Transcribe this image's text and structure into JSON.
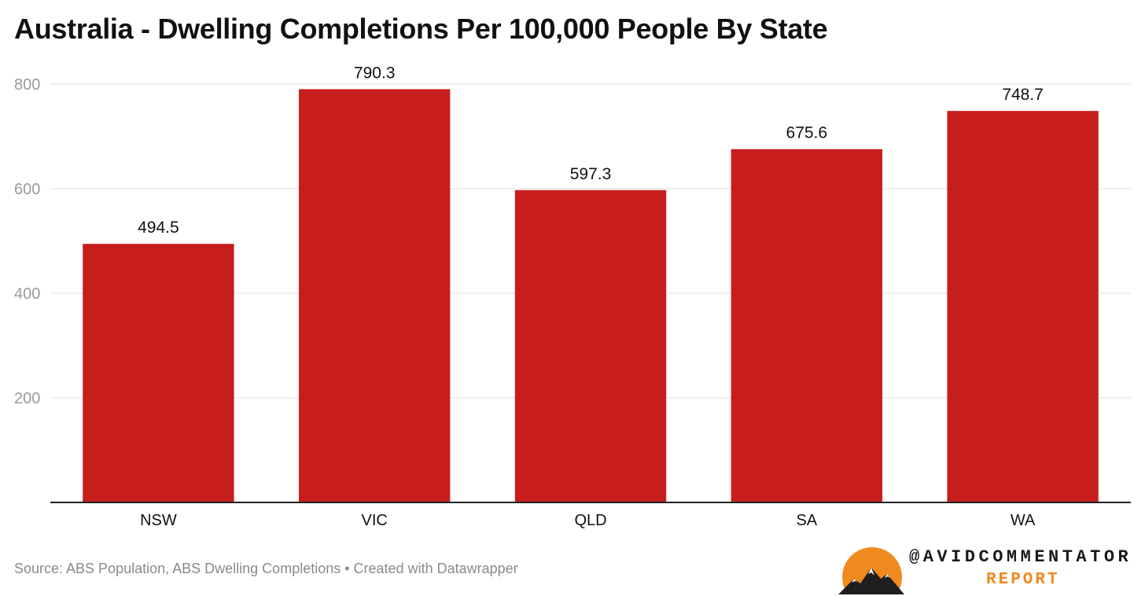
{
  "chart_data": {
    "type": "bar",
    "title": "Australia - Dwelling Completions Per 100,000 People By State",
    "categories": [
      "NSW",
      "VIC",
      "QLD",
      "SA",
      "WA"
    ],
    "values": [
      494.5,
      790.3,
      597.3,
      675.6,
      748.7
    ],
    "value_labels": [
      "494.5",
      "790.3",
      "597.3",
      "675.6",
      "748.7"
    ],
    "ylim": [
      0,
      800
    ],
    "yticks": [
      200,
      400,
      600,
      800
    ],
    "ytick_labels": [
      "200",
      "400",
      "600",
      "800"
    ],
    "xlabel": "",
    "ylabel": "",
    "grid": true,
    "legend": "none",
    "bar_color": "#c81d1d"
  },
  "footer": {
    "source": "Source: ABS Population, ABS Dwelling Completions • Created with Datawrapper"
  },
  "brand": {
    "handle": "@AVIDCOMMENTATOR",
    "report": "REPORT",
    "logo_icon": "mountain-sun-logo",
    "accent": "#f08a1e"
  }
}
